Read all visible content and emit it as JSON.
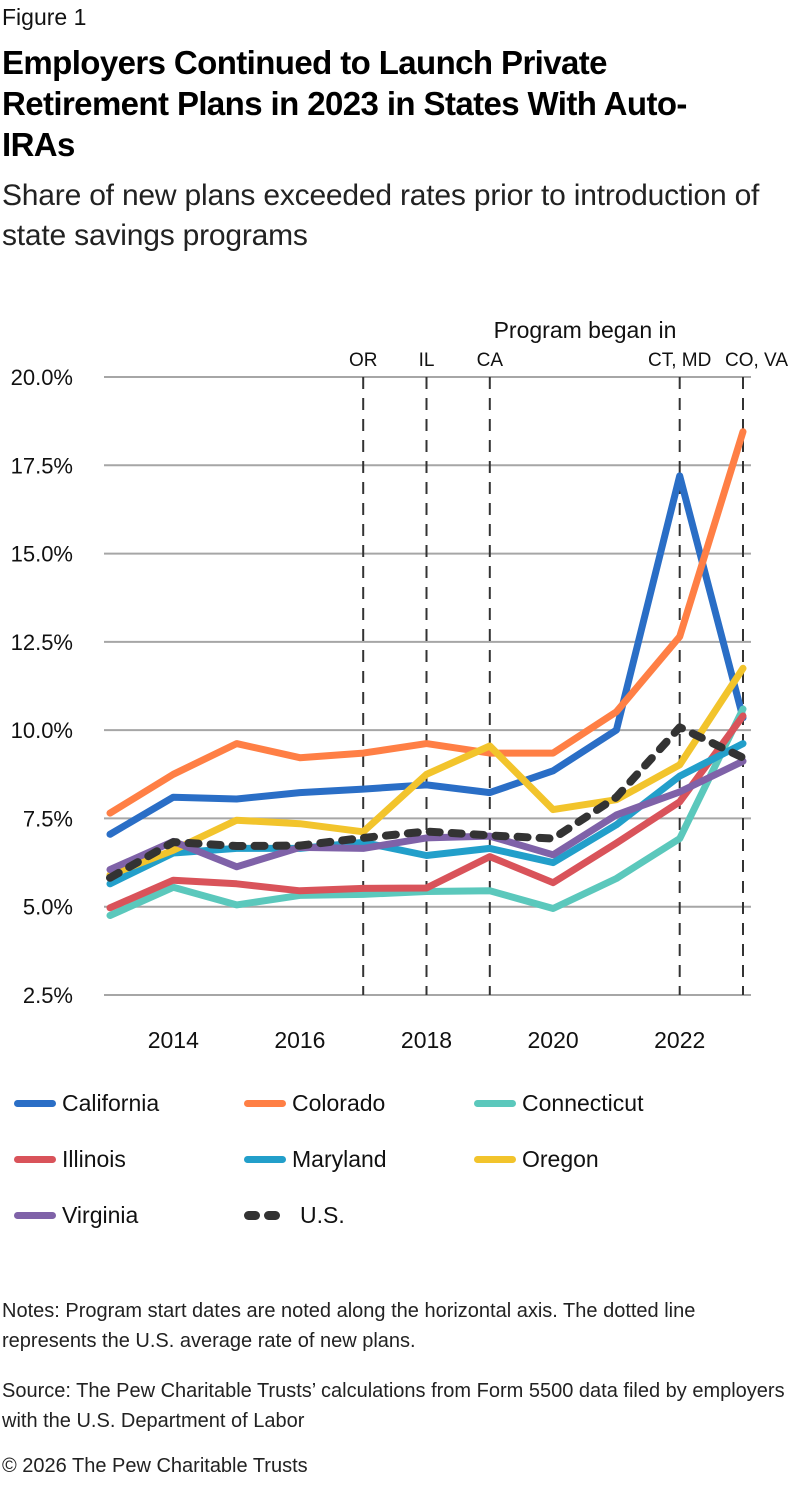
{
  "figure_label": "Figure 1",
  "title": "Employers Continued to Launch Private Retirement Plans in 2023 in States With Auto-IRAs",
  "subtitle": "Share of new plans exceeded rates prior to introduction of state savings programs",
  "notes": "Notes: Program start dates are noted along the horizontal axis. The dotted line represents the U.S. average rate of new plans.",
  "source": "Source: The Pew Charitable Trusts’ calculations from Form 5500 data filed by employers with the U.S. Department of Labor",
  "copyright": "© 2026 The Pew Charitable Trusts",
  "chart_data": {
    "type": "line",
    "title": "Employers Continued to Launch Private Retirement Plans in 2023 in States With Auto-IRAs",
    "xlabel": "",
    "ylabel": "",
    "x": [
      2013,
      2014,
      2015,
      2016,
      2017,
      2018,
      2019,
      2020,
      2021,
      2022,
      2023
    ],
    "x_tick_labels": [
      "2014",
      "2016",
      "2018",
      "2020",
      "2022"
    ],
    "x_ticks": [
      2014,
      2016,
      2018,
      2020,
      2022
    ],
    "y_tick_labels": [
      "2.5%",
      "5.0%",
      "7.5%",
      "10.0%",
      "12.5%",
      "15.0%",
      "17.5%",
      "20.0%"
    ],
    "y_ticks": [
      2.5,
      5.0,
      7.5,
      10.0,
      12.5,
      15.0,
      17.5,
      20.0
    ],
    "ylim": [
      2.5,
      20.0
    ],
    "xlim": [
      2013,
      2023
    ],
    "grid": true,
    "legend_position": "bottom",
    "annotation_header": "Program began in",
    "program_starts": [
      {
        "label": "OR",
        "year": 2017
      },
      {
        "label": "IL",
        "year": 2018
      },
      {
        "label": "CA",
        "year": 2019
      },
      {
        "label": "CT, MD",
        "year": 2022
      },
      {
        "label": "CO, VA",
        "year": 2023
      }
    ],
    "series": [
      {
        "name": "California",
        "color": "#2A6EC6",
        "dashed": false,
        "values": [
          7.05,
          8.1,
          8.05,
          8.23,
          8.33,
          8.45,
          8.23,
          8.85,
          10.0,
          17.2,
          10.35
        ]
      },
      {
        "name": "Colorado",
        "color": "#FF7F45",
        "dashed": false,
        "values": [
          7.65,
          8.75,
          9.62,
          9.22,
          9.35,
          9.62,
          9.35,
          9.35,
          10.52,
          12.65,
          18.45
        ]
      },
      {
        "name": "Connecticut",
        "color": "#5BC8BC",
        "dashed": false,
        "values": [
          4.75,
          5.55,
          5.05,
          5.32,
          5.35,
          5.43,
          5.45,
          4.95,
          5.8,
          6.93,
          10.6
        ]
      },
      {
        "name": "Illinois",
        "color": "#D9535A",
        "dashed": false,
        "values": [
          4.97,
          5.75,
          5.65,
          5.45,
          5.52,
          5.53,
          6.42,
          5.68,
          6.8,
          7.97,
          10.4
        ]
      },
      {
        "name": "Maryland",
        "color": "#229FCA",
        "dashed": false,
        "values": [
          5.65,
          6.52,
          6.65,
          6.65,
          6.82,
          6.45,
          6.65,
          6.25,
          7.32,
          8.7,
          9.62
        ]
      },
      {
        "name": "Oregon",
        "color": "#F2C42C",
        "dashed": false,
        "values": [
          5.9,
          6.6,
          7.45,
          7.35,
          7.12,
          8.75,
          9.55,
          7.75,
          8.03,
          9.02,
          11.75
        ]
      },
      {
        "name": "Virginia",
        "color": "#7F62A8",
        "dashed": false,
        "values": [
          6.05,
          6.85,
          6.13,
          6.68,
          6.65,
          6.95,
          7.0,
          6.47,
          7.6,
          8.25,
          9.12
        ]
      },
      {
        "name": "U.S.",
        "color": "#333333",
        "dashed": true,
        "values": [
          5.82,
          6.83,
          6.72,
          6.73,
          6.95,
          7.13,
          7.02,
          6.93,
          8.1,
          10.08,
          9.22
        ]
      }
    ]
  },
  "legend": [
    {
      "label": "California",
      "color": "#2A6EC6",
      "dashed": false
    },
    {
      "label": "Colorado",
      "color": "#FF7F45",
      "dashed": false
    },
    {
      "label": "Connecticut",
      "color": "#5BC8BC",
      "dashed": false
    },
    {
      "label": "Illinois",
      "color": "#D9535A",
      "dashed": false
    },
    {
      "label": "Maryland",
      "color": "#229FCA",
      "dashed": false
    },
    {
      "label": "Oregon",
      "color": "#F2C42C",
      "dashed": false
    },
    {
      "label": "Virginia",
      "color": "#7F62A8",
      "dashed": false
    },
    {
      "label": "U.S.",
      "color": "#333333",
      "dashed": true
    }
  ]
}
